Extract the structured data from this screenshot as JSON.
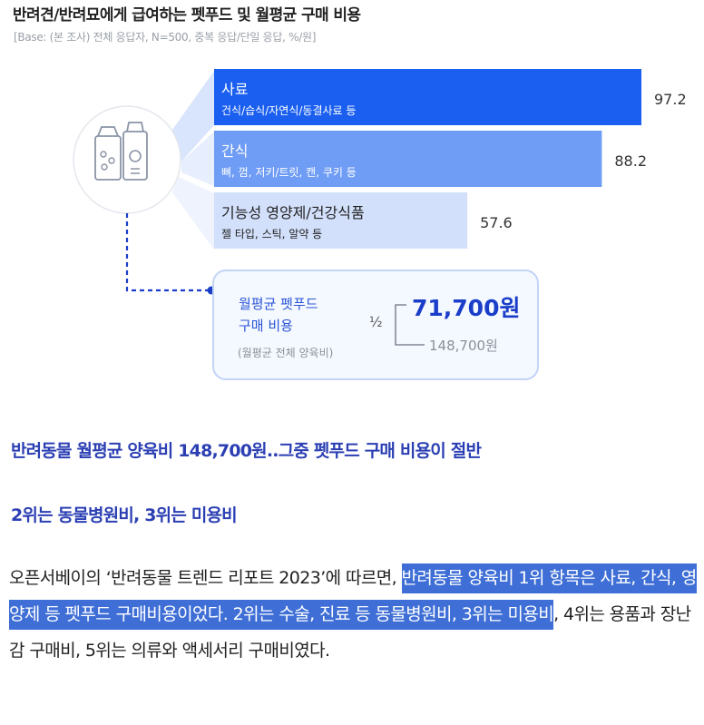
{
  "chart_data": {
    "type": "bar",
    "title": "반려견/반려묘에게 급여하는 펫푸드 및 월평균 구매 비용",
    "subtitle": "[Base: (본 조사) 전체 응답자, N=500, 중복 응답/단일 응답, %/원]",
    "categories": [
      "사료",
      "간식",
      "기능성 영양제/건강식품"
    ],
    "category_details": [
      "건식/습식/자연식/동결사료 등",
      "뼈, 껌, 저키/트릿, 캔, 쿠키 등",
      "젤 타입, 스틱, 알약 등"
    ],
    "values": [
      97.2,
      88.2,
      57.6
    ],
    "value_labels": [
      "97.2",
      "88.2",
      "57.6"
    ],
    "bar_colors": [
      "#1a5ff0",
      "#6f9cf4",
      "#d3e0fb"
    ],
    "label_colors": [
      "#ffffff",
      "#ffffff",
      "#222222"
    ],
    "xlim": [
      0,
      100
    ],
    "grid": false,
    "legend": "none",
    "cost_box": {
      "label_line1": "월평균 펫푸드",
      "label_line2": "구매 비용",
      "label_sub": "(월평균 전체 양육비)",
      "fraction": "½",
      "petfood_cost": "71,700원",
      "total_cost": "148,700원"
    }
  },
  "article": {
    "headline1": "반려동물 월평균 양육비 148,700원..그중 펫푸드 구매 비용이 절반",
    "headline2": "2위는 동물병원비, 3위는 미용비",
    "paragraph_plain_1": "오픈서베이의 ‘반려동물 트렌드 리포트 2023’에 따르면, ",
    "paragraph_highlight": "반려동물 양육비 1위 항목은 사료, 간식, 영양제 등 펫푸드 구매비용이었다. 2위는 수술, 진료 등 동물병원비, 3위는 미용비",
    "paragraph_plain_2": ", 4위는 용품과 장난감 구매비, 5위는 의류와 액세서리 구매비였다."
  },
  "colors": {
    "headline": "#2b3fb3",
    "highlight": "#3f6fd6",
    "accent_dark": "#1a3ec9",
    "bar_dark": "#1a5ff0",
    "bar_mid": "#6f9cf4",
    "bar_light": "#d3e0fb",
    "box_border": "#c3d4f6",
    "box_fill": "#f4f8ff",
    "grey_text": "#8b9099"
  },
  "icons": [
    "pet-food-icon"
  ]
}
